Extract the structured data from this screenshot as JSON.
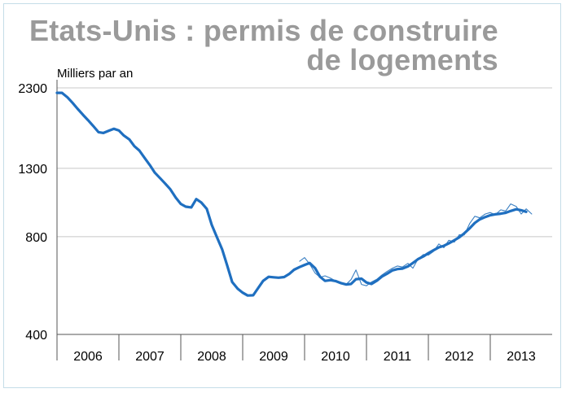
{
  "chart_data": {
    "type": "line",
    "title": "Etats-Unis : permis de construire de logements",
    "title_lines": [
      "Etats-Unis : permis de construire",
      "de logements"
    ],
    "ylabel": "Milliers par an",
    "y_scale": "log",
    "ylim": [
      400,
      2300
    ],
    "y_ticks": [
      400,
      800,
      1300,
      2300
    ],
    "x_categories": [
      "2006",
      "2007",
      "2008",
      "2009",
      "2010",
      "2011",
      "2012",
      "2013"
    ],
    "xlim": [
      2006.0,
      2014.0
    ],
    "grid": "horizontal",
    "legend": "none",
    "series": [
      {
        "style": "thin",
        "color": "#3a7fc2",
        "points": [
          [
            2009.92,
            672
          ],
          [
            2010.0,
            690
          ],
          [
            2010.08,
            660
          ],
          [
            2010.17,
            618
          ],
          [
            2010.25,
            600
          ],
          [
            2010.33,
            606
          ],
          [
            2010.42,
            596
          ],
          [
            2010.5,
            585
          ],
          [
            2010.58,
            580
          ],
          [
            2010.67,
            570
          ],
          [
            2010.75,
            590
          ],
          [
            2010.83,
            632
          ],
          [
            2010.92,
            570
          ],
          [
            2011.0,
            565
          ],
          [
            2011.08,
            580
          ],
          [
            2011.17,
            592
          ],
          [
            2011.25,
            610
          ],
          [
            2011.33,
            625
          ],
          [
            2011.42,
            640
          ],
          [
            2011.5,
            650
          ],
          [
            2011.58,
            645
          ],
          [
            2011.67,
            662
          ],
          [
            2011.75,
            640
          ],
          [
            2011.83,
            682
          ],
          [
            2011.92,
            705
          ],
          [
            2012.0,
            702
          ],
          [
            2012.08,
            720
          ],
          [
            2012.17,
            760
          ],
          [
            2012.25,
            740
          ],
          [
            2012.33,
            780
          ],
          [
            2012.42,
            770
          ],
          [
            2012.5,
            812
          ],
          [
            2012.58,
            810
          ],
          [
            2012.67,
            880
          ],
          [
            2012.75,
            925
          ],
          [
            2012.83,
            915
          ],
          [
            2012.92,
            940
          ],
          [
            2013.0,
            950
          ],
          [
            2013.08,
            935
          ],
          [
            2013.17,
            968
          ],
          [
            2013.25,
            960
          ],
          [
            2013.33,
            1010
          ],
          [
            2013.42,
            992
          ],
          [
            2013.5,
            940
          ],
          [
            2013.58,
            975
          ],
          [
            2013.67,
            940
          ]
        ]
      },
      {
        "style": "thick",
        "color": "#1f6fc0",
        "points": [
          [
            2006.0,
            2220
          ],
          [
            2006.08,
            2220
          ],
          [
            2006.17,
            2150
          ],
          [
            2006.25,
            2070
          ],
          [
            2006.33,
            1985
          ],
          [
            2006.42,
            1900
          ],
          [
            2006.5,
            1830
          ],
          [
            2006.58,
            1760
          ],
          [
            2006.67,
            1680
          ],
          [
            2006.75,
            1670
          ],
          [
            2006.83,
            1695
          ],
          [
            2006.92,
            1720
          ],
          [
            2007.0,
            1700
          ],
          [
            2007.08,
            1640
          ],
          [
            2007.17,
            1595
          ],
          [
            2007.25,
            1520
          ],
          [
            2007.33,
            1475
          ],
          [
            2007.42,
            1395
          ],
          [
            2007.5,
            1330
          ],
          [
            2007.58,
            1260
          ],
          [
            2007.67,
            1210
          ],
          [
            2007.75,
            1165
          ],
          [
            2007.83,
            1120
          ],
          [
            2007.92,
            1055
          ],
          [
            2008.0,
            1010
          ],
          [
            2008.08,
            990
          ],
          [
            2008.17,
            985
          ],
          [
            2008.25,
            1045
          ],
          [
            2008.33,
            1020
          ],
          [
            2008.42,
            975
          ],
          [
            2008.5,
            870
          ],
          [
            2008.58,
            800
          ],
          [
            2008.67,
            730
          ],
          [
            2008.75,
            652
          ],
          [
            2008.83,
            580
          ],
          [
            2008.92,
            553
          ],
          [
            2009.0,
            538
          ],
          [
            2009.08,
            527
          ],
          [
            2009.17,
            528
          ],
          [
            2009.25,
            556
          ],
          [
            2009.33,
            585
          ],
          [
            2009.42,
            602
          ],
          [
            2009.5,
            600
          ],
          [
            2009.58,
            598
          ],
          [
            2009.67,
            601
          ],
          [
            2009.75,
            614
          ],
          [
            2009.83,
            633
          ],
          [
            2009.92,
            645
          ],
          [
            2010.0,
            655
          ],
          [
            2010.08,
            664
          ],
          [
            2010.17,
            640
          ],
          [
            2010.25,
            602
          ],
          [
            2010.33,
            585
          ],
          [
            2010.42,
            588
          ],
          [
            2010.5,
            584
          ],
          [
            2010.58,
            576
          ],
          [
            2010.67,
            570
          ],
          [
            2010.75,
            572
          ],
          [
            2010.83,
            592
          ],
          [
            2010.92,
            594
          ],
          [
            2011.0,
            578
          ],
          [
            2011.08,
            572
          ],
          [
            2011.17,
            586
          ],
          [
            2011.25,
            603
          ],
          [
            2011.33,
            615
          ],
          [
            2011.42,
            630
          ],
          [
            2011.5,
            636
          ],
          [
            2011.58,
            638
          ],
          [
            2011.67,
            648
          ],
          [
            2011.75,
            664
          ],
          [
            2011.83,
            682
          ],
          [
            2011.92,
            696
          ],
          [
            2012.0,
            712
          ],
          [
            2012.08,
            726
          ],
          [
            2012.17,
            742
          ],
          [
            2012.25,
            750
          ],
          [
            2012.33,
            763
          ],
          [
            2012.42,
            780
          ],
          [
            2012.5,
            797
          ],
          [
            2012.58,
            820
          ],
          [
            2012.67,
            850
          ],
          [
            2012.75,
            882
          ],
          [
            2012.83,
            905
          ],
          [
            2012.92,
            920
          ],
          [
            2013.0,
            932
          ],
          [
            2013.08,
            938
          ],
          [
            2013.17,
            942
          ],
          [
            2013.25,
            948
          ],
          [
            2013.33,
            960
          ],
          [
            2013.42,
            972
          ],
          [
            2013.5,
            965
          ],
          [
            2013.58,
            955
          ]
        ]
      }
    ]
  }
}
